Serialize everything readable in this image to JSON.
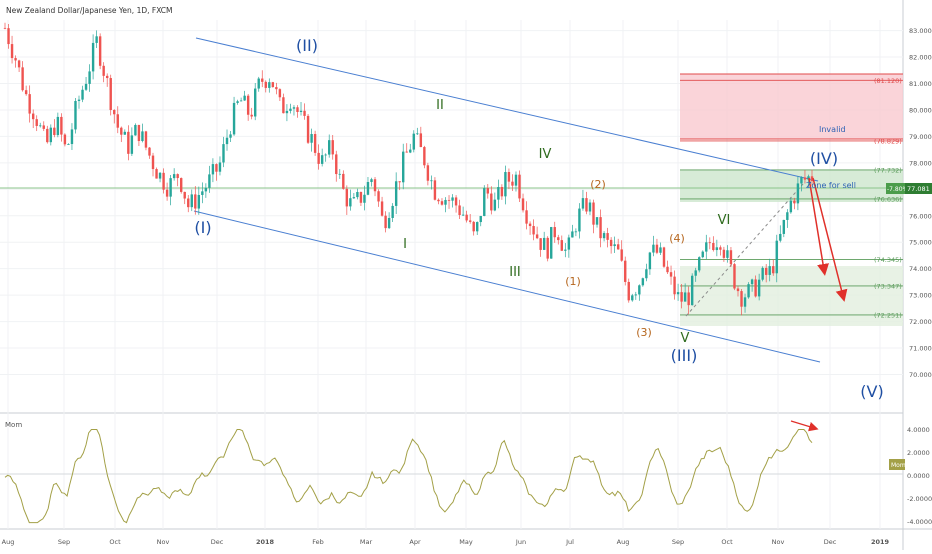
{
  "title": "New Zealand Dollar/Japanese Yen, 1D, FXCM",
  "price_label": "77.081",
  "pct_label": "-7.80%",
  "zone_label": "Zone for sell",
  "invalid_label": "Invalid",
  "mom_label": "Mom",
  "mom_tag": "Mom",
  "colors": {
    "up": "#26a69a",
    "down": "#ef5350",
    "channel": "#4a7fd1",
    "mom": "#a3a047",
    "wave_blue": "#1f4fa3",
    "wave_green": "#2f6b1e",
    "wave_orange": "#b5651d",
    "arrow": "#e0302a"
  },
  "chart_data": {
    "type": "candlestick",
    "price_axis": {
      "ylim": [
        69.3,
        83.4
      ],
      "ticks": [
        "83.000",
        "82.000",
        "81.000",
        "80.000",
        "79.000",
        "78.000",
        "77.000",
        "76.000",
        "75.000",
        "74.000",
        "73.000",
        "72.000",
        "71.000",
        "70.000"
      ]
    },
    "mom_axis": {
      "ylim": [
        -4.4,
        5.0
      ],
      "ticks": [
        "4.0000",
        "2.0000",
        "0.0000",
        "-2.0000",
        "-4.0000"
      ]
    },
    "x_axis": {
      "ticks": [
        "Aug",
        "Sep",
        "Oct",
        "Nov",
        "Dec",
        "2018",
        "Feb",
        "Mar",
        "Apr",
        "May",
        "Jun",
        "Jul",
        "Aug",
        "Sep",
        "Oct",
        "Nov",
        "Dec",
        "2019"
      ]
    },
    "price_path": [
      83.1,
      82.0,
      80.6,
      79.8,
      78.6,
      79.6,
      78.4,
      80.1,
      81.3,
      82.6,
      81.0,
      79.4,
      78.6,
      79.3,
      78.4,
      77.6,
      77.1,
      77.6,
      76.3,
      76.8,
      77.3,
      77.9,
      79.4,
      80.4,
      79.8,
      81.1,
      81.3,
      80.0,
      80.5,
      79.6,
      78.9,
      78.0,
      78.6,
      77.0,
      76.3,
      76.8,
      77.5,
      75.7,
      76.8,
      78.0,
      79.0,
      78.2,
      77.0,
      76.7,
      76.5,
      76.0,
      75.1,
      77.0,
      76.4,
      77.3,
      77.5,
      76.2,
      75.3,
      74.7,
      75.6,
      74.5,
      75.9,
      76.5,
      75.5,
      74.9,
      74.6,
      73.1,
      73.4,
      74.6,
      74.6,
      73.6,
      72.8,
      73.0,
      74.1,
      75.0,
      75.2,
      74.0,
      73.0,
      73.1,
      73.6,
      73.9,
      75.3,
      76.6,
      77.3,
      77.5
    ],
    "key_levels": [
      {
        "label": "(81.120)",
        "value": 81.12
      },
      {
        "label": "(78.829)",
        "value": 78.829
      },
      {
        "label": "(77.732)",
        "value": 77.732
      },
      {
        "label": "(76.636)",
        "value": 76.636
      },
      {
        "label": "(74.345)",
        "value": 74.345
      },
      {
        "label": "(73.347)",
        "value": 73.347
      },
      {
        "label": "(72.251)",
        "value": 72.251
      }
    ],
    "wave_labels": [
      {
        "text": "(II)",
        "group": "blue"
      },
      {
        "text": "(I)",
        "group": "blue"
      },
      {
        "text": "(III)",
        "group": "blue"
      },
      {
        "text": "(IV)",
        "group": "blue"
      },
      {
        "text": "(V)",
        "group": "blue"
      },
      {
        "text": "II",
        "group": "green"
      },
      {
        "text": "I",
        "group": "green"
      },
      {
        "text": "III",
        "group": "green"
      },
      {
        "text": "IV",
        "group": "green"
      },
      {
        "text": "V",
        "group": "green"
      },
      {
        "text": "VI",
        "group": "green"
      },
      {
        "text": "(1)",
        "group": "orange"
      },
      {
        "text": "(2)",
        "group": "orange"
      },
      {
        "text": "(3)",
        "group": "orange"
      },
      {
        "text": "(4)",
        "group": "orange"
      }
    ]
  }
}
